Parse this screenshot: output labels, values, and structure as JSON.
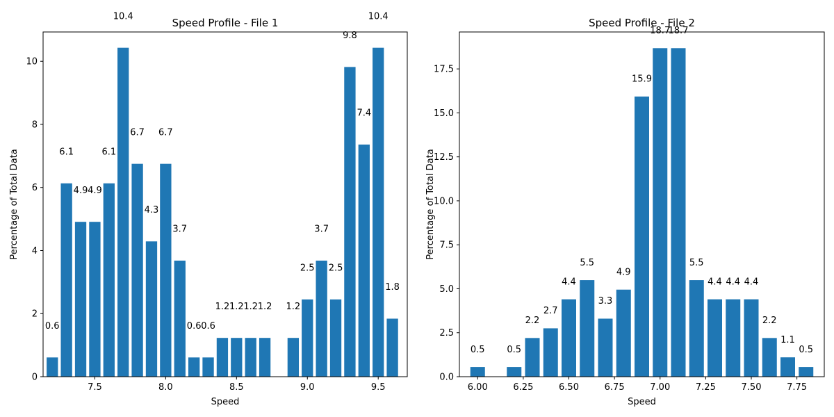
{
  "colors": {
    "bar": "#1f77b4",
    "axis": "#000000",
    "background": "#ffffff"
  },
  "chart_data": [
    {
      "type": "bar",
      "title": "Speed Profile - File 1",
      "xlabel": "Speed",
      "ylabel": "Percentage of Total Data",
      "xlim": [
        7.135,
        9.705
      ],
      "ylim": [
        0,
        10.93
      ],
      "xticks": [
        {
          "value": 7.5,
          "label": "7.5"
        },
        {
          "value": 8.0,
          "label": "8.0"
        },
        {
          "value": 8.5,
          "label": "8.5"
        },
        {
          "value": 9.0,
          "label": "9.0"
        },
        {
          "value": 9.5,
          "label": "9.5"
        }
      ],
      "yticks": [
        {
          "value": 0,
          "label": "0"
        },
        {
          "value": 2,
          "label": "2"
        },
        {
          "value": 4,
          "label": "4"
        },
        {
          "value": 6,
          "label": "6"
        },
        {
          "value": 8,
          "label": "8"
        },
        {
          "value": 10,
          "label": "10"
        }
      ],
      "bar_width": 0.08,
      "label_offset": 1,
      "bars": [
        {
          "x": 7.2,
          "value": 0.61,
          "label": "0.6"
        },
        {
          "x": 7.3,
          "value": 6.13,
          "label": "6.1"
        },
        {
          "x": 7.4,
          "value": 4.91,
          "label": "4.9"
        },
        {
          "x": 7.5,
          "value": 4.91,
          "label": "4.9"
        },
        {
          "x": 7.6,
          "value": 6.13,
          "label": "6.1"
        },
        {
          "x": 7.7,
          "value": 10.43,
          "label": "10.4"
        },
        {
          "x": 7.8,
          "value": 6.75,
          "label": "6.7"
        },
        {
          "x": 7.9,
          "value": 4.29,
          "label": "4.3"
        },
        {
          "x": 8.0,
          "value": 6.75,
          "label": "6.7"
        },
        {
          "x": 8.1,
          "value": 3.68,
          "label": "3.7"
        },
        {
          "x": 8.2,
          "value": 0.61,
          "label": "0.6"
        },
        {
          "x": 8.3,
          "value": 0.61,
          "label": "0.6"
        },
        {
          "x": 8.4,
          "value": 1.23,
          "label": "1.2"
        },
        {
          "x": 8.5,
          "value": 1.23,
          "label": "1.2"
        },
        {
          "x": 8.6,
          "value": 1.23,
          "label": "1.2"
        },
        {
          "x": 8.7,
          "value": 1.23,
          "label": "1.2"
        },
        {
          "x": 8.9,
          "value": 1.23,
          "label": "1.2"
        },
        {
          "x": 9.0,
          "value": 2.45,
          "label": "2.5"
        },
        {
          "x": 9.1,
          "value": 3.68,
          "label": "3.7"
        },
        {
          "x": 9.2,
          "value": 2.45,
          "label": "2.5"
        },
        {
          "x": 9.3,
          "value": 9.82,
          "label": "9.8"
        },
        {
          "x": 9.4,
          "value": 7.36,
          "label": "7.4"
        },
        {
          "x": 9.5,
          "value": 10.43,
          "label": "10.4"
        },
        {
          "x": 9.6,
          "value": 1.84,
          "label": "1.8"
        }
      ]
    },
    {
      "type": "bar",
      "title": "Speed Profile - File 2",
      "xlabel": "Speed",
      "ylabel": "Percentage of Total Data",
      "xlim": [
        5.9,
        7.9
      ],
      "ylim": [
        0,
        19.6
      ],
      "xticks": [
        {
          "value": 6.0,
          "label": "6.00"
        },
        {
          "value": 6.25,
          "label": "6.25"
        },
        {
          "value": 6.5,
          "label": "6.50"
        },
        {
          "value": 6.75,
          "label": "6.75"
        },
        {
          "value": 7.0,
          "label": "7.00"
        },
        {
          "value": 7.25,
          "label": "7.25"
        },
        {
          "value": 7.5,
          "label": "7.50"
        },
        {
          "value": 7.75,
          "label": "7.75"
        }
      ],
      "yticks": [
        {
          "value": 0,
          "label": "0.0"
        },
        {
          "value": 2.5,
          "label": "2.5"
        },
        {
          "value": 5.0,
          "label": "5.0"
        },
        {
          "value": 7.5,
          "label": "7.5"
        },
        {
          "value": 10.0,
          "label": "10.0"
        },
        {
          "value": 12.5,
          "label": "12.5"
        },
        {
          "value": 15.0,
          "label": "15.0"
        },
        {
          "value": 17.5,
          "label": "17.5"
        }
      ],
      "bar_width": 0.08,
      "label_offset": 1,
      "bars": [
        {
          "x": 6.0,
          "value": 0.55,
          "label": "0.5"
        },
        {
          "x": 6.2,
          "value": 0.55,
          "label": "0.5"
        },
        {
          "x": 6.3,
          "value": 2.2,
          "label": "2.2"
        },
        {
          "x": 6.4,
          "value": 2.75,
          "label": "2.7"
        },
        {
          "x": 6.5,
          "value": 4.4,
          "label": "4.4"
        },
        {
          "x": 6.6,
          "value": 5.49,
          "label": "5.5"
        },
        {
          "x": 6.7,
          "value": 3.3,
          "label": "3.3"
        },
        {
          "x": 6.8,
          "value": 4.95,
          "label": "4.9"
        },
        {
          "x": 6.9,
          "value": 15.93,
          "label": "15.9"
        },
        {
          "x": 7.0,
          "value": 18.68,
          "label": "18.7"
        },
        {
          "x": 7.1,
          "value": 18.68,
          "label": "18.7"
        },
        {
          "x": 7.2,
          "value": 5.49,
          "label": "5.5"
        },
        {
          "x": 7.3,
          "value": 4.4,
          "label": "4.4"
        },
        {
          "x": 7.4,
          "value": 4.4,
          "label": "4.4"
        },
        {
          "x": 7.5,
          "value": 4.4,
          "label": "4.4"
        },
        {
          "x": 7.6,
          "value": 2.2,
          "label": "2.2"
        },
        {
          "x": 7.7,
          "value": 1.1,
          "label": "1.1"
        },
        {
          "x": 7.8,
          "value": 0.55,
          "label": "0.5"
        }
      ]
    }
  ]
}
